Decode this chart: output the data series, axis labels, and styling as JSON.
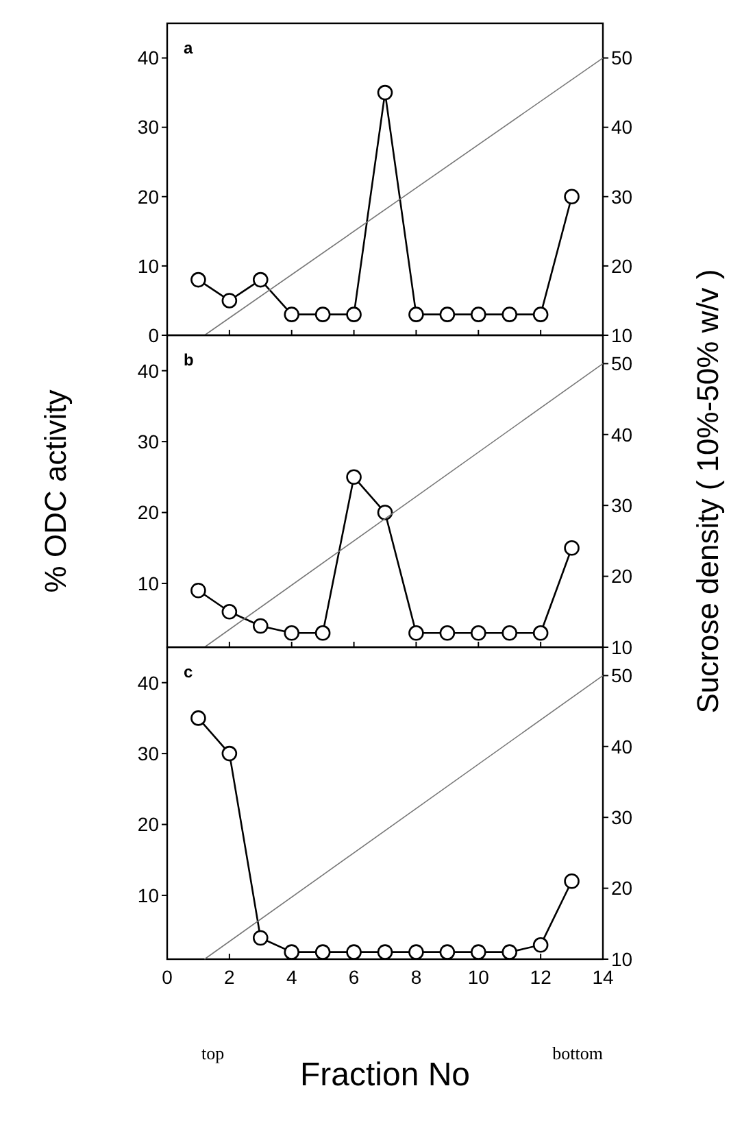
{
  "chart_data": [
    {
      "type": "line",
      "title": "a",
      "xlim": [
        0,
        14
      ],
      "xticks": [
        0,
        2,
        4,
        6,
        8,
        10,
        12,
        14
      ],
      "ylim": [
        0,
        45
      ],
      "yticks": [
        0,
        10,
        20,
        30,
        40
      ],
      "y2lim": [
        10,
        55
      ],
      "y2ticks": [
        10,
        20,
        30,
        40,
        50
      ],
      "tick_labels": "y",
      "marker": "circle",
      "line_style": "solid",
      "series": [
        {
          "color": "#000000",
          "x": [
            1,
            2,
            3,
            4,
            5,
            6,
            7,
            8,
            9,
            10,
            11,
            12,
            13
          ],
          "values": [
            8,
            5,
            8,
            3,
            3,
            3,
            35,
            3,
            3,
            3,
            3,
            3,
            20
          ]
        },
        {
          "color": "#777777",
          "marker": "none",
          "axis": "y2",
          "x": [
            1.2,
            14
          ],
          "values": [
            10,
            50
          ]
        }
      ]
    },
    {
      "type": "line",
      "title": "b",
      "ylabel": "% ODC activity",
      "y2label": "Sucrose density ( 10%-50% w/v )",
      "xlim": [
        0,
        14
      ],
      "xticks": [
        0,
        2,
        4,
        6,
        8,
        10,
        12,
        14
      ],
      "ylim": [
        1,
        45
      ],
      "yticks": [
        10,
        20,
        30,
        40
      ],
      "y2lim": [
        10,
        54
      ],
      "y2ticks": [
        10,
        20,
        30,
        40,
        50
      ],
      "tick_labels": "y",
      "marker": "circle",
      "line_style": "solid",
      "series": [
        {
          "color": "#000000",
          "x": [
            1,
            2,
            3,
            4,
            5,
            6,
            7,
            8,
            9,
            10,
            11,
            12,
            13
          ],
          "values": [
            9,
            6,
            4,
            3,
            3,
            25,
            20,
            3,
            3,
            3,
            3,
            3,
            15
          ]
        },
        {
          "color": "#777777",
          "marker": "none",
          "axis": "y2",
          "x": [
            1.2,
            14
          ],
          "values": [
            10,
            50
          ]
        }
      ]
    },
    {
      "type": "line",
      "title": "c",
      "xlabel": "Fraction No",
      "annotations": [
        "top",
        "bottom"
      ],
      "xlim": [
        0,
        14
      ],
      "xticks": [
        0,
        2,
        4,
        6,
        8,
        10,
        12,
        14
      ],
      "ylim": [
        1,
        45
      ],
      "yticks": [
        10,
        20,
        30,
        40
      ],
      "y2lim": [
        10,
        54
      ],
      "y2ticks": [
        10,
        20,
        30,
        40,
        50
      ],
      "marker": "circle",
      "line_style": "solid",
      "series": [
        {
          "color": "#000000",
          "x": [
            1,
            2,
            3,
            4,
            5,
            6,
            7,
            8,
            9,
            10,
            11,
            12,
            13
          ],
          "values": [
            35,
            30,
            4,
            2,
            2,
            2,
            2,
            2,
            2,
            2,
            2,
            3,
            12
          ]
        },
        {
          "color": "#777777",
          "marker": "none",
          "axis": "y2",
          "x": [
            1.2,
            14
          ],
          "values": [
            10,
            50
          ]
        }
      ]
    }
  ]
}
